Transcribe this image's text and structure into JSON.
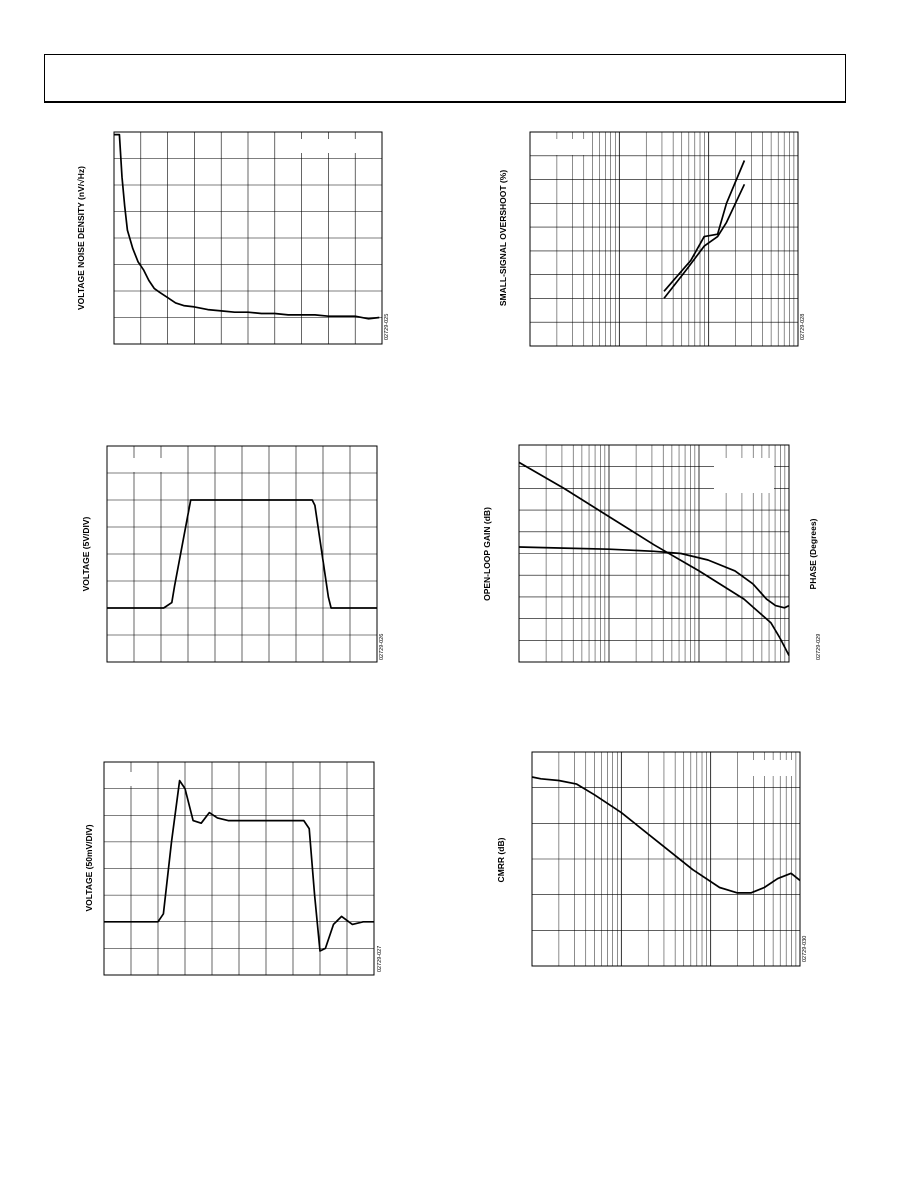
{
  "header": {
    "title": ""
  },
  "chart_data": [
    {
      "id": "noise",
      "type": "line",
      "ylabel": "VOLTAGE NOISE DENSITY (nV/√Hz)",
      "figure_code": "02729-025",
      "grid": {
        "xdiv": 10,
        "ydiv": 8,
        "xlog": false,
        "ylog": false
      },
      "xlim": [
        0,
        10
      ],
      "ylim": [
        0,
        8
      ],
      "series": [
        {
          "x": [
            0,
            0.2,
            0.3,
            0.4,
            0.5,
            0.7,
            0.9,
            1.1,
            1.3,
            1.5,
            1.7,
            2.0,
            2.3,
            2.6,
            3.0,
            3.5,
            4.0,
            4.5,
            5.0,
            5.5,
            6.0,
            6.5,
            7.0,
            7.5,
            8.0,
            8.5,
            9.0,
            9.5,
            9.9
          ],
          "y": [
            7.9,
            7.9,
            6.3,
            5.2,
            4.3,
            3.6,
            3.1,
            2.8,
            2.4,
            2.1,
            1.95,
            1.75,
            1.55,
            1.45,
            1.4,
            1.3,
            1.25,
            1.2,
            1.2,
            1.15,
            1.15,
            1.1,
            1.1,
            1.1,
            1.05,
            1.05,
            1.05,
            0.95,
            1.0
          ]
        }
      ],
      "legend_box": true
    },
    {
      "id": "overshoot",
      "type": "line",
      "ylabel": "SMALL-SIGNAL OVERSHOOT (%)",
      "figure_code": "02729-028",
      "grid": {
        "xdiv": 3,
        "ydiv": 9,
        "xlog": true,
        "ylog": false
      },
      "xlim": [
        0,
        3
      ],
      "ylim": [
        0,
        9
      ],
      "series": [
        {
          "x": [
            1.5,
            1.8,
            1.95,
            2.1,
            2.2,
            2.4
          ],
          "y": [
            2.3,
            3.6,
            4.6,
            4.7,
            6.0,
            7.8
          ]
        },
        {
          "x": [
            1.5,
            1.75,
            1.95,
            2.1,
            2.2,
            2.4
          ],
          "y": [
            2.0,
            3.2,
            4.2,
            4.6,
            5.2,
            6.8
          ]
        }
      ],
      "legend_box": true
    },
    {
      "id": "large_pulse",
      "type": "line",
      "ylabel": "VOLTAGE (5V/DIV)",
      "figure_code": "02729-026",
      "grid": {
        "xdiv": 10,
        "ydiv": 8,
        "xlog": false,
        "ylog": false
      },
      "xlim": [
        0,
        10
      ],
      "ylim": [
        0,
        8
      ],
      "series": [
        {
          "x": [
            0,
            2.1,
            2.4,
            2.5,
            3.1,
            7.6,
            7.7,
            8.2,
            8.3,
            10
          ],
          "y": [
            2.0,
            2.0,
            2.2,
            2.8,
            6.0,
            6.0,
            5.8,
            2.4,
            2.0,
            2.0
          ]
        }
      ],
      "legend_box": true
    },
    {
      "id": "olg",
      "type": "line",
      "ylabel": "OPEN-LOOP GAIN (dB)",
      "y2label": "PHASE (Degrees)",
      "figure_code": "02729-029",
      "grid": {
        "xdiv": 3,
        "ydiv": 10,
        "xlog": true,
        "ylog": false
      },
      "xlim": [
        0,
        3
      ],
      "ylim": [
        0,
        10
      ],
      "series": [
        {
          "x": [
            0,
            0.5,
            1.0,
            1.5,
            2.0,
            2.5,
            2.8,
            2.9,
            3.0
          ],
          "y": [
            9.2,
            8.0,
            6.7,
            5.4,
            4.2,
            2.9,
            1.8,
            1.1,
            0.3
          ]
        },
        {
          "x": [
            0,
            0.5,
            1.0,
            1.5,
            1.8,
            2.1,
            2.4,
            2.6,
            2.75,
            2.85,
            2.95,
            3.0
          ],
          "y": [
            5.3,
            5.25,
            5.2,
            5.1,
            5.0,
            4.7,
            4.2,
            3.6,
            2.9,
            2.6,
            2.5,
            2.6
          ]
        }
      ],
      "legend_box": true
    },
    {
      "id": "small_pulse",
      "type": "line",
      "ylabel": "VOLTAGE (50mV/DIV)",
      "figure_code": "02729-027",
      "grid": {
        "xdiv": 10,
        "ydiv": 8,
        "xlog": false,
        "ylog": false
      },
      "xlim": [
        0,
        10
      ],
      "ylim": [
        0,
        8
      ],
      "series": [
        {
          "x": [
            0,
            2.0,
            2.2,
            2.5,
            2.8,
            3.0,
            3.3,
            3.6,
            3.9,
            4.2,
            4.6,
            7.4,
            7.6,
            7.8,
            8.0,
            8.2,
            8.5,
            8.8,
            9.2,
            9.6,
            10
          ],
          "y": [
            2.0,
            2.0,
            2.3,
            5.0,
            7.3,
            7.0,
            5.8,
            5.7,
            6.1,
            5.9,
            5.8,
            5.8,
            5.5,
            3.0,
            0.9,
            1.0,
            1.9,
            2.2,
            1.9,
            2.0,
            2.0
          ]
        }
      ],
      "legend_box": true
    },
    {
      "id": "cmrr",
      "type": "line",
      "ylabel": "CMRR (dB)",
      "figure_code": "02729-030",
      "grid": {
        "xdiv": 3,
        "ydiv": 6,
        "xlog": true,
        "ylog": false
      },
      "xlim": [
        0,
        3
      ],
      "ylim": [
        0,
        6
      ],
      "series": [
        {
          "x": [
            0,
            0.1,
            0.3,
            0.5,
            0.7,
            1.0,
            1.4,
            1.8,
            2.1,
            2.3,
            2.45,
            2.6,
            2.75,
            2.9,
            3.0
          ],
          "y": [
            5.3,
            5.25,
            5.2,
            5.1,
            4.8,
            4.3,
            3.5,
            2.7,
            2.2,
            2.05,
            2.05,
            2.2,
            2.45,
            2.6,
            2.4
          ]
        }
      ],
      "legend_box": true
    }
  ]
}
